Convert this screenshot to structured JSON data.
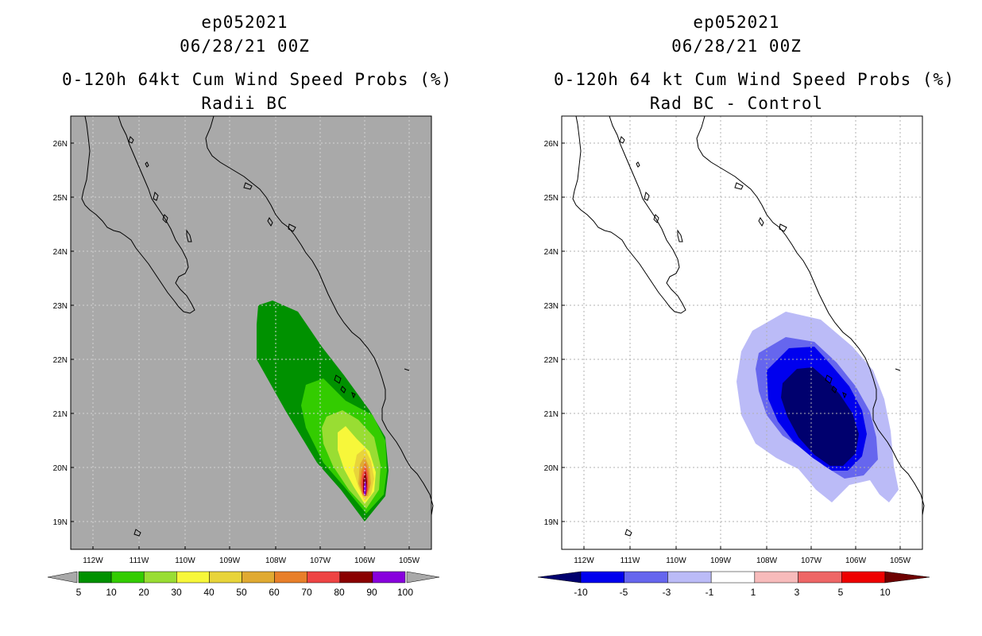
{
  "panels": [
    {
      "storm_id": "ep052021",
      "datetime": "06/28/21 00Z",
      "title": "0-120h 64kt Cum Wind Speed Probs (%)",
      "subtitle": "Radii BC",
      "colorbar_labels": [
        "5",
        "10",
        "20",
        "30",
        "40",
        "50",
        "60",
        "70",
        "80",
        "90",
        "100"
      ],
      "colorbar_colors": [
        "#009100",
        "#33cc00",
        "#99dd33",
        "#f7f73a",
        "#e8d43a",
        "#e0aa32",
        "#e87f2a",
        "#ee4444",
        "#8a0000",
        "#8800dd"
      ],
      "background": "#a9a9a9"
    },
    {
      "storm_id": "ep052021",
      "datetime": "06/28/21 00Z",
      "title": "0-120h 64 kt Cum Wind Speed Probs (%)",
      "subtitle": "Rad BC - Control",
      "colorbar_labels": [
        "-10",
        "-5",
        "-3",
        "-1",
        "1",
        "3",
        "5",
        "10"
      ],
      "colorbar_colors": [
        "#00006e",
        "#0000ee",
        "#6666ee",
        "#bbbbf7",
        "#ffffff",
        "#f7bbbb",
        "#ee6666",
        "#ee0000",
        "#6e0000"
      ],
      "background": "#ffffff"
    }
  ],
  "axes": {
    "lon_labels": [
      "112W",
      "111W",
      "110W",
      "109W",
      "108W",
      "107W",
      "106W",
      "105W"
    ],
    "lat_labels": [
      "26N",
      "25N",
      "24N",
      "23N",
      "22N",
      "21N",
      "20N",
      "19N"
    ]
  }
}
